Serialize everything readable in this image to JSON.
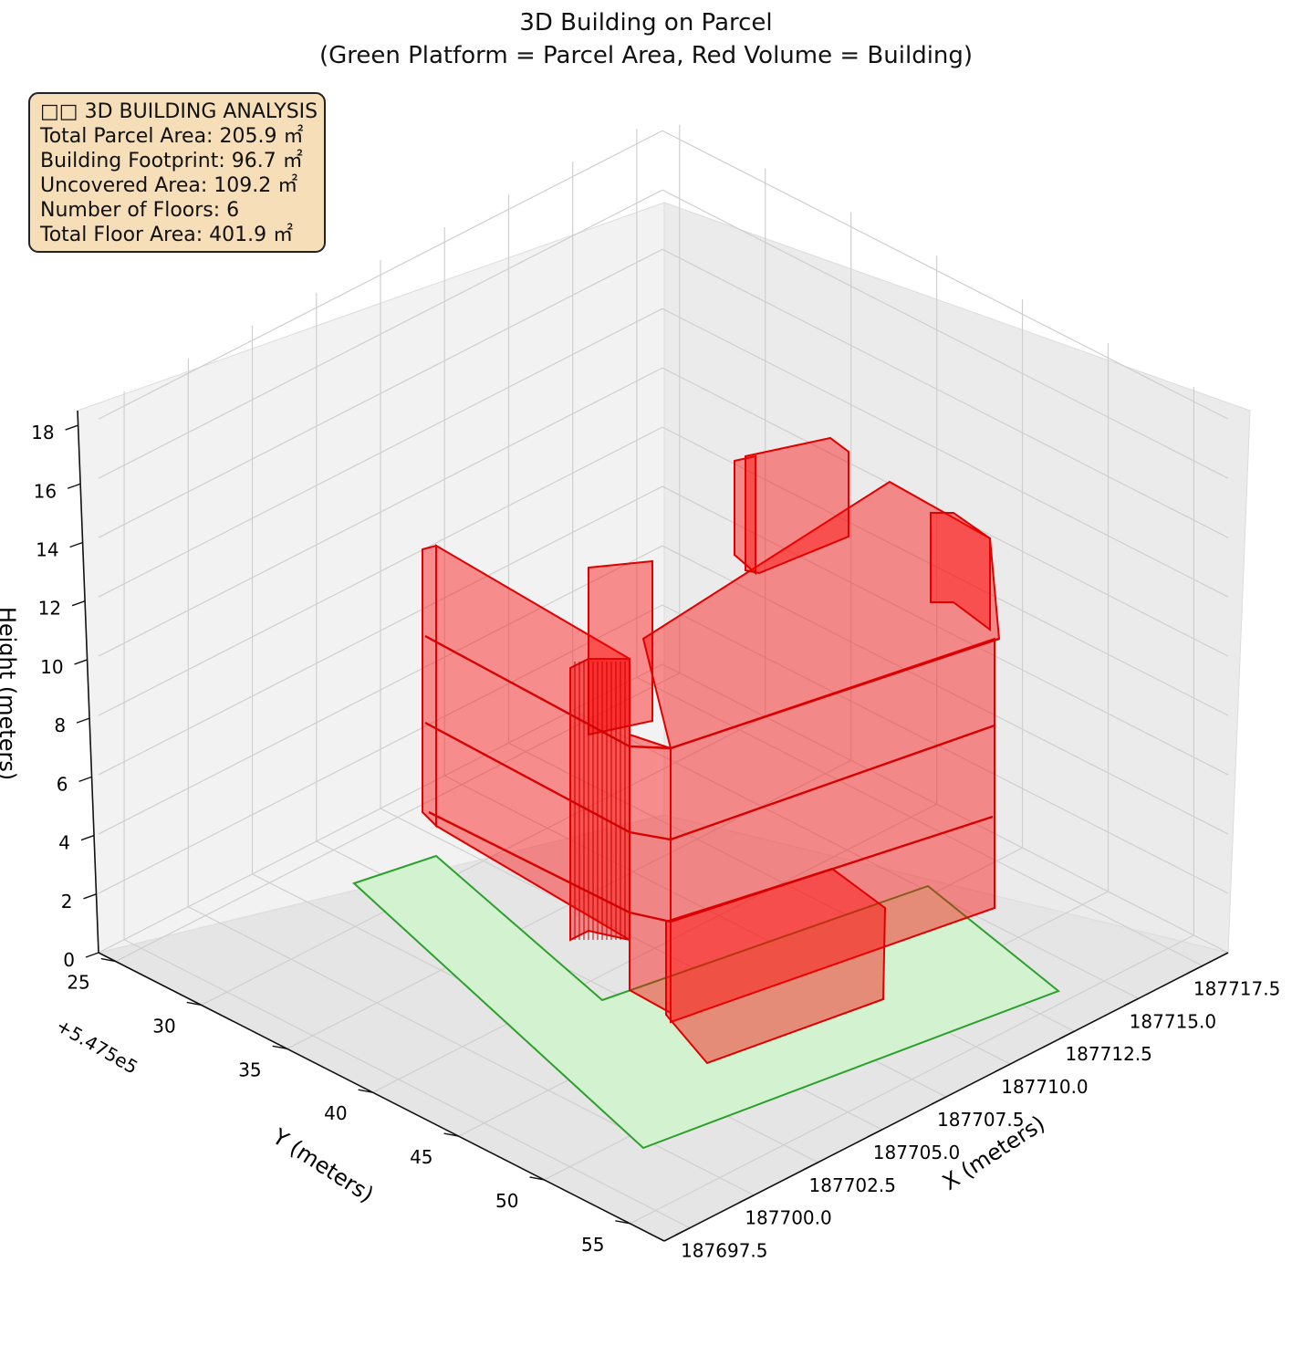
{
  "chart_data": {
    "type": "3d-polygon",
    "title": "3D Building on Parcel",
    "subtitle": "(Green Platform = Parcel Area, Red Volume = Building)",
    "xlabel": "X (meters)",
    "ylabel": "Y (meters)",
    "zlabel": "Height (meters)",
    "y_offset_label": "+5.475e5",
    "xlim": [
      187696.5,
      187718.5
    ],
    "ylim": [
      24,
      57
    ],
    "zlim": [
      0,
      18.5
    ],
    "x_ticks": [
      "187697.5",
      "187700.0",
      "187702.5",
      "187705.0",
      "187707.5",
      "187710.0",
      "187712.5",
      "187715.0",
      "187717.5"
    ],
    "y_ticks": [
      "25",
      "30",
      "35",
      "40",
      "45",
      "50",
      "55"
    ],
    "z_ticks": [
      "0",
      "2",
      "4",
      "6",
      "8",
      "10",
      "12",
      "14",
      "16",
      "18"
    ],
    "grid": true,
    "parcel_color": "#2ca02c",
    "building_color": "#ff0000",
    "floors": 6
  },
  "info": {
    "header": "□□ 3D BUILDING ANALYSIS",
    "parcel_area": "Total Parcel Area: 205.9 ㎡",
    "footprint": "Building Footprint: 96.7 ㎡",
    "uncovered": "Uncovered Area: 109.2 ㎡",
    "floors": "Number of Floors: 6",
    "floor_area": "Total Floor Area: 401.9 ㎡"
  }
}
